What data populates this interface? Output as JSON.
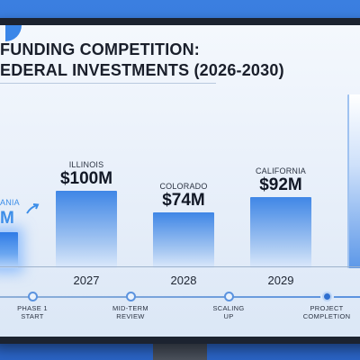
{
  "title": {
    "line1": "FUNDING COMPETITION:",
    "line2": "EDERAL INVESTMENTS (2026-2030)"
  },
  "partial_left": {
    "state": "ANIA",
    "value": "M"
  },
  "bars": [
    {
      "state": "ILLINOIS",
      "value": "$100M",
      "year": "2027"
    },
    {
      "state": "COLORADO",
      "value": "$74M",
      "year": "2028"
    },
    {
      "state": "CALIFORNIA",
      "value": "$92M",
      "year": "2029"
    }
  ],
  "milestones": [
    {
      "label": "PHASE 1\nSTART",
      "active": false
    },
    {
      "label": "MID-TERM\nREVIEW",
      "active": false
    },
    {
      "label": "SCALING\nUP",
      "active": false
    },
    {
      "label": "PROJECT\nCOMPLETION",
      "active": true
    }
  ],
  "colors": {
    "frame": "#2f6fd0",
    "accent": "#3d8ee8",
    "bar_top": "#3f86e6",
    "text": "#121826"
  },
  "icons": {
    "trend_arrow": "arrow-up-right-icon"
  }
}
